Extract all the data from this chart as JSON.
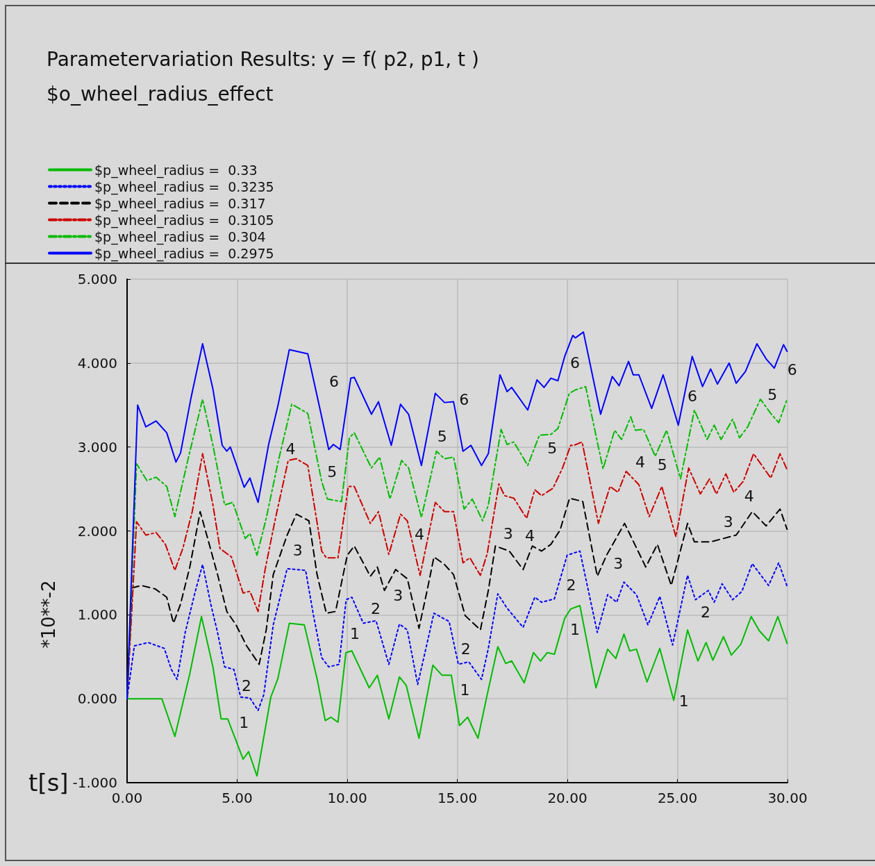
{
  "chart_data": {
    "type": "line",
    "title": "Parametervariation Results: y = f( p2, p1, t )",
    "subtitle": "$o_wheel_radius_effect",
    "xlabel": "t[s]",
    "ylabel": "*10**-2",
    "xlim": [
      0,
      30
    ],
    "ylim": [
      -1,
      5
    ],
    "xticks": [
      {
        "value": 0,
        "label": "0.00"
      },
      {
        "value": 5,
        "label": "5.00"
      },
      {
        "value": 10,
        "label": "10.00"
      },
      {
        "value": 15,
        "label": "15.00"
      },
      {
        "value": 20,
        "label": "20.00"
      },
      {
        "value": 25,
        "label": "25.00"
      },
      {
        "value": 30,
        "label": "30.00"
      }
    ],
    "yticks": [
      {
        "value": -1,
        "label": "-1.000"
      },
      {
        "value": 0,
        "label": "0.000"
      },
      {
        "value": 1,
        "label": "1.000"
      },
      {
        "value": 2,
        "label": "2.000"
      },
      {
        "value": 3,
        "label": "3.000"
      },
      {
        "value": 4,
        "label": "4.000"
      },
      {
        "value": 5,
        "label": "5.000"
      }
    ],
    "grid": true,
    "legend": "top left",
    "marker": "none",
    "series": [
      {
        "name": "$p_wheel_radius =  0.33",
        "color": "#00bb00",
        "line_style": "solid",
        "x": [
          0,
          1.58,
          2.17,
          2.85,
          3.38,
          3.9,
          4.27,
          4.57,
          5.27,
          5.52,
          5.9,
          6.53,
          6.85,
          7.37,
          8.05,
          8.63,
          9.0,
          9.26,
          9.58,
          9.94,
          10.21,
          11.0,
          11.37,
          11.89,
          12.37,
          12.68,
          13.26,
          13.89,
          14.31,
          14.73,
          15.1,
          15.47,
          15.94,
          16.36,
          16.84,
          17.2,
          17.47,
          18.04,
          18.46,
          18.78,
          19.09,
          19.41,
          19.88,
          20.15,
          20.57,
          21.3,
          21.83,
          22.2,
          22.57,
          22.83,
          23.14,
          23.62,
          24.2,
          24.83,
          25.46,
          25.93,
          26.3,
          26.61,
          27.09,
          27.45,
          27.88,
          28.35,
          28.72,
          29.14,
          29.56,
          29.98
        ],
        "values": [
          0,
          0,
          -0.45,
          0.3,
          0.98,
          0.38,
          -0.24,
          -0.24,
          -0.72,
          -0.63,
          -0.92,
          0.02,
          0.24,
          0.9,
          0.88,
          0.24,
          -0.26,
          -0.22,
          -0.28,
          0.55,
          0.57,
          0.13,
          0.28,
          -0.24,
          0.26,
          0.16,
          -0.47,
          0.4,
          0.28,
          0.28,
          -0.32,
          -0.22,
          -0.47,
          0.05,
          0.62,
          0.42,
          0.45,
          0.19,
          0.55,
          0.45,
          0.55,
          0.53,
          0.96,
          1.07,
          1.11,
          0.13,
          0.59,
          0.48,
          0.77,
          0.57,
          0.59,
          0.2,
          0.6,
          -0.02,
          0.82,
          0.45,
          0.67,
          0.46,
          0.74,
          0.52,
          0.65,
          0.98,
          0.81,
          0.69,
          0.98,
          0.66
        ]
      },
      {
        "name": "$p_wheel_radius =  0.3235",
        "color": "#0000ff",
        "line_style": "dotted",
        "x": [
          0,
          0.33,
          0.96,
          1.69,
          2.01,
          2.27,
          2.64,
          3.06,
          3.43,
          3.8,
          4.11,
          4.43,
          4.85,
          5.16,
          5.58,
          5.95,
          6.21,
          6.64,
          7.27,
          8.11,
          8.47,
          8.84,
          9.16,
          9.63,
          9.95,
          10.21,
          10.73,
          11.31,
          11.89,
          12.37,
          12.73,
          13.2,
          13.94,
          14.63,
          15.05,
          15.52,
          16.1,
          16.41,
          16.84,
          17.26,
          17.99,
          18.52,
          18.83,
          19.41,
          19.99,
          20.57,
          21.36,
          21.83,
          22.24,
          22.57,
          23.14,
          23.66,
          24.2,
          24.78,
          25.46,
          25.82,
          26.4,
          26.67,
          27.03,
          27.51,
          27.93,
          28.4,
          29.14,
          29.6,
          29.98
        ],
        "values": [
          0,
          0.63,
          0.67,
          0.6,
          0.35,
          0.23,
          0.79,
          1.24,
          1.6,
          1.13,
          0.79,
          0.38,
          0.35,
          0.02,
          0.01,
          -0.14,
          0.05,
          0.88,
          1.55,
          1.53,
          0.99,
          0.49,
          0.38,
          0.41,
          1.18,
          1.21,
          0.9,
          0.93,
          0.41,
          0.89,
          0.82,
          0.17,
          1.02,
          0.92,
          0.41,
          0.44,
          0.23,
          0.6,
          1.25,
          1.08,
          0.85,
          1.21,
          1.15,
          1.19,
          1.71,
          1.76,
          0.79,
          1.24,
          1.15,
          1.39,
          1.24,
          0.88,
          1.22,
          0.64,
          1.47,
          1.18,
          1.29,
          1.15,
          1.37,
          1.18,
          1.28,
          1.61,
          1.35,
          1.62,
          1.34
        ]
      },
      {
        "name": "$p_wheel_radius =  0.317",
        "color": "#000000",
        "line_style": "dashed",
        "x": [
          0,
          0.22,
          0.64,
          1.27,
          1.8,
          2.11,
          2.43,
          2.85,
          3.32,
          3.64,
          4.11,
          4.53,
          4.95,
          5.43,
          6.0,
          6.32,
          6.64,
          7.27,
          7.69,
          8.26,
          8.63,
          9.05,
          9.47,
          10.0,
          10.32,
          11.05,
          11.37,
          11.69,
          12.2,
          12.73,
          13.26,
          13.63,
          13.94,
          14.42,
          14.83,
          15.36,
          16.05,
          16.41,
          16.73,
          17.36,
          17.99,
          18.41,
          18.83,
          19.25,
          19.67,
          20.1,
          20.7,
          21.36,
          21.78,
          22.6,
          23.56,
          24.09,
          24.72,
          25.46,
          25.77,
          26.51,
          27.67,
          28.4,
          29.03,
          29.66,
          29.98
        ],
        "values": [
          0,
          1.32,
          1.35,
          1.31,
          1.21,
          0.9,
          1.13,
          1.57,
          2.23,
          1.93,
          1.48,
          1.04,
          0.88,
          0.63,
          0.41,
          0.82,
          1.48,
          1.95,
          2.2,
          2.12,
          1.48,
          1.02,
          1.04,
          1.71,
          1.82,
          1.46,
          1.57,
          1.29,
          1.54,
          1.43,
          0.84,
          1.29,
          1.69,
          1.6,
          1.48,
          0.99,
          0.82,
          1.29,
          1.82,
          1.76,
          1.54,
          1.82,
          1.76,
          1.84,
          2.01,
          2.39,
          2.35,
          1.46,
          1.71,
          2.09,
          1.57,
          1.84,
          1.35,
          2.09,
          1.87,
          1.87,
          1.95,
          2.23,
          2.06,
          2.26,
          2.02
        ]
      },
      {
        "name": "$p_wheel_radius =  0.3105",
        "color": "#cc0000",
        "line_style": "dashdot",
        "x": [
          0,
          0.43,
          0.85,
          1.32,
          1.74,
          2.17,
          2.53,
          2.96,
          3.43,
          3.9,
          4.22,
          4.74,
          5.27,
          5.58,
          5.95,
          6.27,
          6.74,
          7.32,
          7.69,
          8.21,
          8.84,
          9.05,
          9.58,
          10.05,
          10.32,
          11.05,
          11.42,
          11.89,
          12.42,
          12.73,
          13.31,
          14.0,
          14.42,
          14.83,
          15.26,
          15.57,
          16.05,
          16.36,
          16.89,
          17.15,
          17.57,
          18.15,
          18.52,
          18.83,
          19.35,
          19.78,
          20.15,
          20.3,
          20.67,
          21.41,
          21.94,
          22.3,
          22.67,
          23.25,
          23.72,
          24.29,
          24.93,
          25.51,
          26.04,
          26.46,
          26.77,
          27.2,
          27.56,
          27.99,
          28.46,
          29.24,
          29.66,
          29.98
        ],
        "values": [
          0,
          2.11,
          1.95,
          1.98,
          1.84,
          1.53,
          1.79,
          2.23,
          2.92,
          2.31,
          1.79,
          1.69,
          1.26,
          1.28,
          1.04,
          1.54,
          2.15,
          2.84,
          2.86,
          2.78,
          1.76,
          1.68,
          1.68,
          2.53,
          2.53,
          2.09,
          2.23,
          1.72,
          2.2,
          2.12,
          1.47,
          2.34,
          2.23,
          2.23,
          1.62,
          1.68,
          1.47,
          1.73,
          2.56,
          2.42,
          2.39,
          2.15,
          2.49,
          2.42,
          2.51,
          2.75,
          3.02,
          3.02,
          3.06,
          2.09,
          2.53,
          2.46,
          2.71,
          2.55,
          2.17,
          2.53,
          1.93,
          2.75,
          2.44,
          2.62,
          2.44,
          2.68,
          2.46,
          2.59,
          2.92,
          2.63,
          2.92,
          2.73
        ]
      },
      {
        "name": "$p_wheel_radius =  0.304",
        "color": "#00bb00",
        "line_style": "dashdot",
        "x": [
          0,
          0.43,
          0.9,
          1.32,
          1.8,
          2.17,
          2.8,
          3.43,
          3.9,
          4.43,
          4.8,
          5.37,
          5.58,
          5.9,
          6.32,
          6.85,
          7.48,
          8.21,
          8.84,
          9.1,
          9.74,
          10.1,
          10.32,
          11.1,
          11.47,
          11.94,
          12.47,
          12.79,
          13.37,
          14.05,
          14.42,
          14.83,
          15.31,
          15.68,
          16.15,
          16.41,
          16.99,
          17.26,
          17.57,
          18.2,
          18.73,
          19.25,
          19.57,
          20.09,
          20.36,
          20.83,
          21.62,
          22.15,
          22.46,
          22.88,
          23.09,
          23.46,
          23.99,
          24.51,
          25.14,
          25.77,
          26.35,
          26.67,
          26.98,
          27.51,
          27.82,
          28.19,
          28.77,
          29.24,
          29.6,
          29.98
        ],
        "values": [
          0,
          2.8,
          2.6,
          2.64,
          2.53,
          2.17,
          2.89,
          3.57,
          3.02,
          2.31,
          2.34,
          1.91,
          1.97,
          1.71,
          2.15,
          2.81,
          3.51,
          3.4,
          2.59,
          2.38,
          2.35,
          3.11,
          3.17,
          2.75,
          2.88,
          2.38,
          2.84,
          2.75,
          2.16,
          2.95,
          2.86,
          2.88,
          2.26,
          2.38,
          2.12,
          2.31,
          3.21,
          3.03,
          3.06,
          2.78,
          3.14,
          3.15,
          3.22,
          3.64,
          3.68,
          3.72,
          2.74,
          3.2,
          3.09,
          3.36,
          3.2,
          3.21,
          2.89,
          3.2,
          2.62,
          3.44,
          3.09,
          3.26,
          3.09,
          3.33,
          3.11,
          3.24,
          3.57,
          3.4,
          3.29,
          3.57
        ]
      },
      {
        "name": "$p_wheel_radius =  0.2975",
        "color": "#0000ff",
        "line_style": "solid",
        "x": [
          0,
          0.48,
          0.85,
          1.32,
          1.8,
          2.22,
          2.43,
          2.9,
          3.43,
          3.9,
          4.32,
          4.53,
          4.69,
          5.32,
          5.58,
          5.95,
          6.43,
          6.85,
          7.37,
          8.21,
          8.79,
          9.16,
          9.37,
          9.68,
          10.16,
          10.32,
          11.1,
          11.42,
          12.0,
          12.42,
          12.79,
          13.37,
          14.0,
          14.42,
          14.83,
          15.26,
          15.62,
          16.1,
          16.41,
          16.94,
          17.26,
          17.47,
          18.2,
          18.62,
          18.94,
          19.25,
          19.57,
          19.88,
          20.25,
          20.36,
          20.73,
          21.51,
          22.04,
          22.35,
          22.78,
          22.99,
          23.25,
          23.83,
          24.35,
          25.04,
          25.67,
          26.14,
          26.51,
          26.82,
          27.35,
          27.67,
          28.09,
          28.61,
          29.03,
          29.4,
          29.82,
          29.98
        ],
        "values": [
          0,
          3.5,
          3.24,
          3.31,
          3.17,
          2.82,
          2.93,
          3.58,
          4.23,
          3.69,
          3.02,
          2.95,
          3.0,
          2.52,
          2.63,
          2.34,
          3.03,
          3.49,
          4.16,
          4.11,
          3.42,
          2.97,
          3.03,
          2.97,
          3.82,
          3.83,
          3.39,
          3.54,
          3.02,
          3.51,
          3.39,
          2.78,
          3.64,
          3.53,
          3.54,
          2.95,
          3.02,
          2.78,
          2.92,
          3.86,
          3.66,
          3.71,
          3.44,
          3.8,
          3.71,
          3.82,
          3.79,
          4.08,
          4.33,
          4.3,
          4.37,
          3.39,
          3.84,
          3.73,
          4.02,
          3.86,
          3.86,
          3.46,
          3.86,
          3.26,
          4.08,
          3.72,
          3.93,
          3.75,
          4.0,
          3.76,
          3.9,
          4.23,
          4.05,
          3.94,
          4.22,
          4.14
        ]
      }
    ],
    "annotations": [
      {
        "text": "1",
        "x": 4.9,
        "y": -0.45
      },
      {
        "text": "1",
        "x": 9.94,
        "y": 0.5
      },
      {
        "text": "1",
        "x": 14.94,
        "y": -0.06
      },
      {
        "text": "1",
        "x": 19.94,
        "y": 0.98
      },
      {
        "text": "1",
        "x": 24.88,
        "y": 0.13
      },
      {
        "text": "2",
        "x": 5.9,
        "y": -0.12
      },
      {
        "text": "2",
        "x": 10.88,
        "y": 0.91
      },
      {
        "text": "2",
        "x": 15.86,
        "y": 0.32
      },
      {
        "text": "2",
        "x": 20.9,
        "y": 1.35
      },
      {
        "text": "2",
        "x": 25.87,
        "y": 1.19
      },
      {
        "text": "3",
        "x": 6.9,
        "y": 1.6
      },
      {
        "text": "3",
        "x": 11.9,
        "y": 1.39
      },
      {
        "text": "3",
        "x": 16.9,
        "y": 1.8
      },
      {
        "text": "3",
        "x": 21.9,
        "y": 1.77
      },
      {
        "text": "3",
        "x": 26.9,
        "y": 1.94
      },
      {
        "text": "4",
        "x": 7.9,
        "y": 2.81
      },
      {
        "text": "4",
        "x": 12.87,
        "y": 1.79
      },
      {
        "text": "4",
        "x": 17.89,
        "y": 2.2
      },
      {
        "text": "4",
        "x": 22.9,
        "y": 2.65
      },
      {
        "text": "4",
        "x": 27.85,
        "y": 2.57
      },
      {
        "text": "5",
        "x": 8.9,
        "y": 2.54
      },
      {
        "text": "5",
        "x": 13.9,
        "y": 2.96
      },
      {
        "text": "5",
        "x": 18.9,
        "y": 3.14
      },
      {
        "text": "5",
        "x": 23.9,
        "y": 2.94
      },
      {
        "text": "5",
        "x": 28.9,
        "y": 3.46
      },
      {
        "text": "6",
        "x": 9.87,
        "y": 3.61
      },
      {
        "text": "6",
        "x": 14.9,
        "y": 3.4
      },
      {
        "text": "6",
        "x": 19.94,
        "y": 4.16
      },
      {
        "text": "6",
        "x": 24.83,
        "y": 3.44
      },
      {
        "text": "6",
        "x": 29.8,
        "y": 4.08
      }
    ]
  }
}
